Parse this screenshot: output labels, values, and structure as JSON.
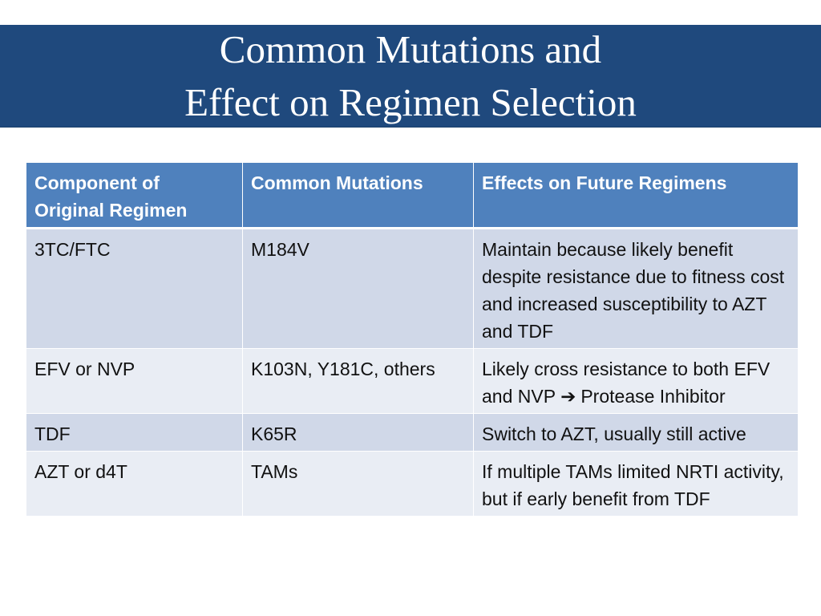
{
  "slide": {
    "title_line1": "Common Mutations and",
    "title_line2": "Effect on Regimen Selection",
    "colors": {
      "banner": "#1f497d",
      "header_row": "#4f81bd",
      "row_odd": "#d0d8e8",
      "row_even": "#e9edf4"
    }
  },
  "table": {
    "headers": [
      "Component of Original Regimen",
      "Common Mutations",
      "Effects on Future Regimens"
    ],
    "rows": [
      {
        "component": "3TC/FTC",
        "mutations": "M184V",
        "effects": "Maintain because likely benefit despite resistance due to fitness cost and increased susceptibility to AZT and TDF"
      },
      {
        "component": "EFV or NVP",
        "mutations": "K103N, Y181C, others",
        "effects_before_arrow": "Likely cross resistance to both EFV and NVP",
        "arrow_icon": "right-arrow-icon",
        "effects_after_arrow": "Protease Inhibitor"
      },
      {
        "component": "TDF",
        "mutations": "K65R",
        "effects": "Switch to AZT, usually still active"
      },
      {
        "component": "AZT or d4T",
        "mutations": "TAMs",
        "effects": "If multiple TAMs limited NRTI activity, but if early benefit from TDF"
      }
    ]
  }
}
